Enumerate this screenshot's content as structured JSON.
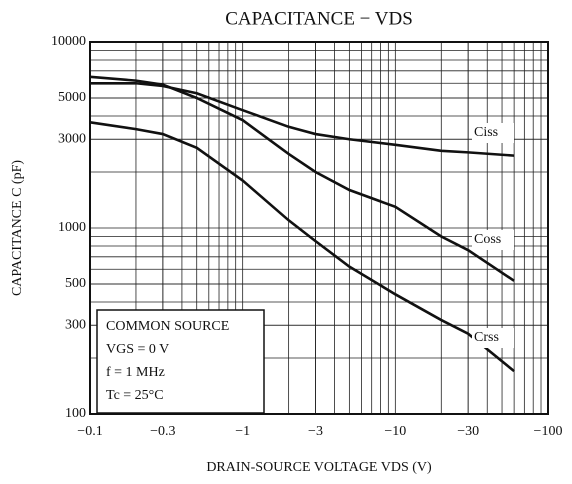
{
  "chart_data": {
    "type": "line",
    "title": "CAPACITANCE − VDS",
    "x_label": "DRAIN-SOURCE VOLTAGE   VDS   (V)",
    "y_label": "CAPACITANCE   C   (pF)",
    "x": [
      -0.1,
      -0.2,
      -0.3,
      -0.5,
      -1,
      -2,
      -3,
      -5,
      -10,
      -20,
      -30,
      -60
    ],
    "series": [
      {
        "name": "Ciss",
        "color": "#111111",
        "values": [
          6000,
          6000,
          5800,
          5300,
          4300,
          3500,
          3200,
          3000,
          2800,
          2600,
          2550,
          2450
        ]
      },
      {
        "name": "Coss",
        "color": "#111111",
        "values": [
          6500,
          6200,
          5900,
          5000,
          3800,
          2500,
          2000,
          1600,
          1300,
          900,
          760,
          520
        ]
      },
      {
        "name": "Crss",
        "color": "#111111",
        "values": [
          3700,
          3400,
          3200,
          2700,
          1800,
          1100,
          850,
          620,
          440,
          320,
          270,
          170
        ]
      }
    ],
    "xlim": [
      -0.1,
      -100
    ],
    "ylim": [
      100,
      10000
    ],
    "xticks": [
      {
        "value": -0.1,
        "label": "−0.1"
      },
      {
        "value": -0.3,
        "label": "−0.3"
      },
      {
        "value": -1,
        "label": "−1"
      },
      {
        "value": -3,
        "label": "−3"
      },
      {
        "value": -10,
        "label": "−10"
      },
      {
        "value": -30,
        "label": "−30"
      },
      {
        "value": -100,
        "label": "−100"
      }
    ],
    "yticks": [
      100,
      300,
      500,
      1000,
      3000,
      5000,
      10000
    ],
    "log_x": true,
    "log_y": true,
    "grid": true,
    "annotation_lines": [
      "COMMON SOURCE",
      "VGS = 0 V",
      "f = 1 MHz",
      "Tc = 25°C"
    ]
  }
}
